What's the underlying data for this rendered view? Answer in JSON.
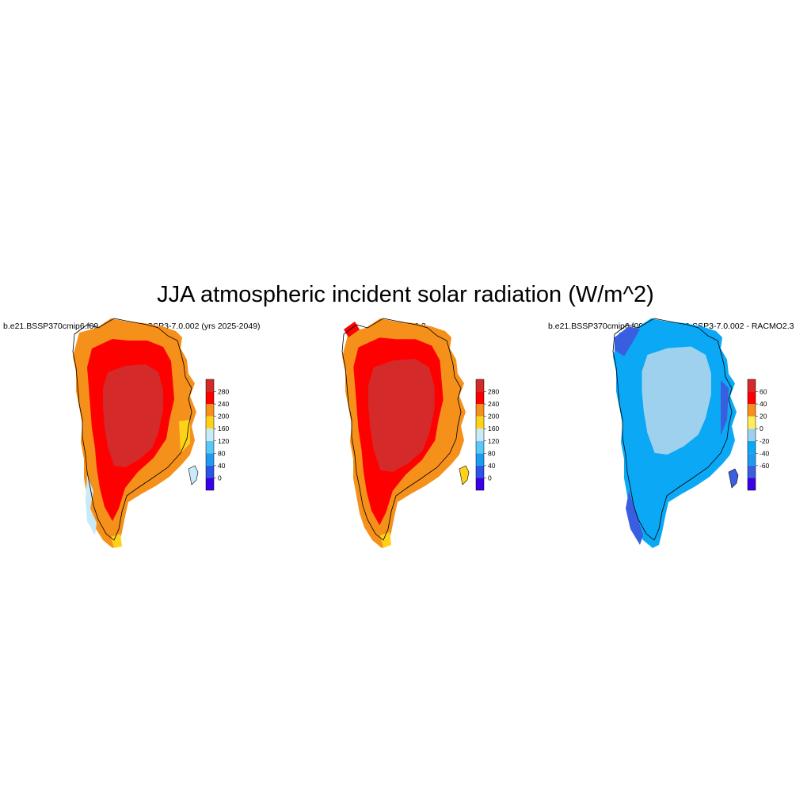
{
  "title": "JJA atmospheric incident solar radiation (W/m^2)",
  "panels": [
    {
      "id": "model",
      "title": "b.e21.BSSP370cmip6.f09_g17.CMIP6-SSP3-7.0.002 (yrs 2025-2049)",
      "palette": "absolute",
      "colorbar": {
        "colors": [
          "#3a00e6",
          "#2a55e8",
          "#1e9bf0",
          "#5cc8f5",
          "#c9eaf7",
          "#ffd21a",
          "#f5901a",
          "#ff0000",
          "#d42a2a"
        ],
        "ticks": [
          "0",
          "40",
          "80",
          "120",
          "160",
          "200",
          "240",
          "280"
        ]
      }
    },
    {
      "id": "obs",
      "title": "RACMO2.3",
      "palette": "absolute",
      "colorbar": {
        "colors": [
          "#3a00e6",
          "#2a55e8",
          "#1e9bf0",
          "#5cc8f5",
          "#c9eaf7",
          "#ffd21a",
          "#f5901a",
          "#ff0000",
          "#d42a2a"
        ],
        "ticks": [
          "0",
          "40",
          "80",
          "120",
          "160",
          "200",
          "240",
          "280"
        ]
      }
    },
    {
      "id": "diff",
      "title": "b.e21.BSSP370cmip6.f09_g17.CMIP6-SSP3-7.0.002 - RACMO2.3",
      "palette": "difference",
      "colorbar": {
        "colors": [
          "#3a00e6",
          "#3a5ee0",
          "#1e9bf0",
          "#0aa8f5",
          "#9dd1ee",
          "#ffee55",
          "#f5901a",
          "#ff0000",
          "#d42a2a"
        ],
        "ticks": [
          "-60",
          "-40",
          "-20",
          "0",
          "20",
          "40",
          "60"
        ]
      }
    }
  ]
}
